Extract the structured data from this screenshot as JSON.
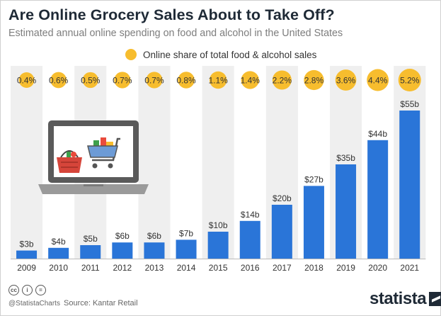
{
  "header": {
    "title": "Are Online Grocery Sales About to Take Off?",
    "subtitle": "Estimated annual online spending on food and alcohol in the United States"
  },
  "legend": {
    "label": "Online share of total food & alcohol sales",
    "color": "#f7bd2e"
  },
  "colors": {
    "bar": "#2a75d8",
    "bubble": "#f7bd2e",
    "stripe": "#efefef"
  },
  "chart_data": {
    "type": "bar",
    "title": "Are Online Grocery Sales About to Take Off?",
    "subtitle": "Estimated annual online spending on food and alcohol in the United States",
    "categories": [
      "2009",
      "2010",
      "2011",
      "2012",
      "2013",
      "2014",
      "2015",
      "2016",
      "2017",
      "2018",
      "2019",
      "2020",
      "2021"
    ],
    "series": [
      {
        "values": [
          3,
          4,
          5,
          6,
          6,
          7,
          10,
          14,
          20,
          27,
          35,
          44,
          55
        ],
        "labels": [
          "$3b",
          "$4b",
          "$5b",
          "$6b",
          "$6b",
          "$7b",
          "$10b",
          "$14b",
          "$20b",
          "$27b",
          "$35b",
          "$44b",
          "$55b"
        ]
      },
      {
        "name": "Online share of total food & alcohol sales",
        "values": [
          0.4,
          0.6,
          0.5,
          0.7,
          0.7,
          0.8,
          1.1,
          1.4,
          2.2,
          2.8,
          3.6,
          4.4,
          5.2
        ],
        "labels": [
          "0.4%",
          "0.6%",
          "0.5%",
          "0.7%",
          "0.7%",
          "0.8%",
          "1.1%",
          "1.4%",
          "2.2%",
          "2.8%",
          "3.6%",
          "4.4%",
          "5.2%"
        ]
      }
    ],
    "ylim": [
      0,
      58
    ],
    "grid": false,
    "legend": "top-center"
  },
  "footer": {
    "icons": [
      "cc-icon",
      "by-icon",
      "nd-icon"
    ],
    "handle": "@StatistaCharts",
    "source": "Source: Kantar Retail",
    "brand": "statista"
  }
}
